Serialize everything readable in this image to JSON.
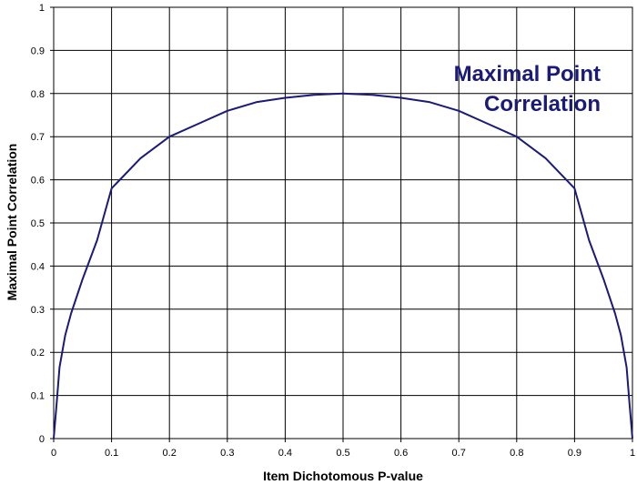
{
  "chart_data": {
    "type": "line",
    "title": "",
    "annotation": {
      "lines": [
        "Maximal Point",
        "Correlation"
      ],
      "color": "#1a1a7a"
    },
    "xlabel": "Item Dichotomous P-value",
    "ylabel": "Maximal Point Correlation",
    "xlim": [
      0,
      1
    ],
    "ylim": [
      0,
      1
    ],
    "xticks": [
      "0",
      "0.1",
      "0.2",
      "0.3",
      "0.4",
      "0.5",
      "0.6",
      "0.7",
      "0.8",
      "0.9",
      "1"
    ],
    "yticks": [
      "0",
      "0.1",
      "0.2",
      "0.3",
      "0.4",
      "0.5",
      "0.6",
      "0.7",
      "0.8",
      "0.9",
      "1"
    ],
    "grid": true,
    "legend": "none",
    "series": [
      {
        "color": "#1a1a7a",
        "x": [
          0,
          0.005,
          0.01,
          0.02,
          0.03,
          0.05,
          0.075,
          0.1,
          0.15,
          0.2,
          0.25,
          0.3,
          0.35,
          0.4,
          0.45,
          0.5,
          0.55,
          0.6,
          0.65,
          0.7,
          0.75,
          0.8,
          0.85,
          0.9,
          0.925,
          0.95,
          0.97,
          0.98,
          0.99,
          0.995,
          1
        ],
        "y": [
          0,
          0.08,
          0.165,
          0.24,
          0.29,
          0.37,
          0.46,
          0.58,
          0.65,
          0.7,
          0.73,
          0.76,
          0.78,
          0.79,
          0.797,
          0.8,
          0.797,
          0.79,
          0.78,
          0.76,
          0.73,
          0.7,
          0.65,
          0.58,
          0.46,
          0.37,
          0.29,
          0.24,
          0.165,
          0.08,
          0
        ]
      }
    ]
  }
}
